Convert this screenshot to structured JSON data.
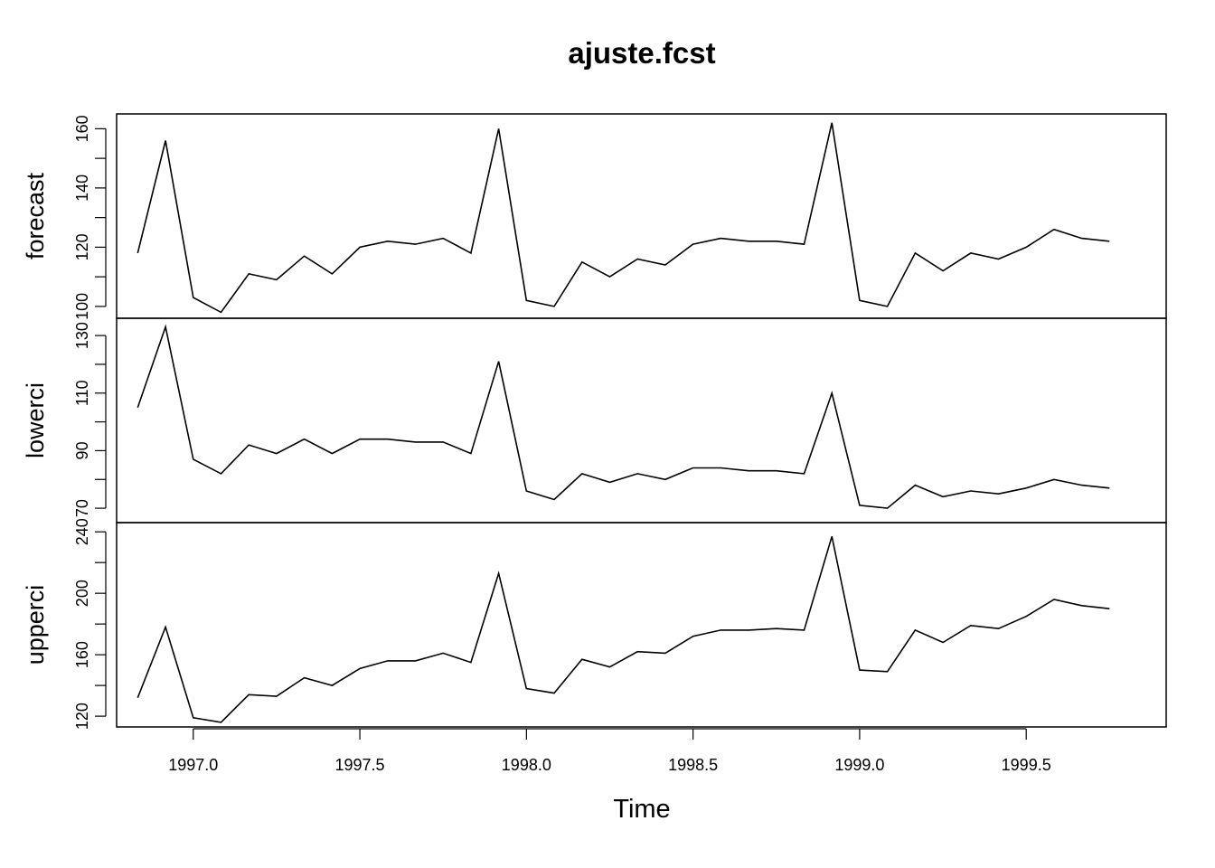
{
  "chart_data": {
    "type": "line",
    "title": "ajuste.fcst",
    "xlabel": "Time",
    "x_ticks": [
      1997.0,
      1997.5,
      1998.0,
      1998.5,
      1999.0,
      1999.5
    ],
    "x_tick_labels": [
      "1997.0",
      "1997.5",
      "1998.0",
      "1998.5",
      "1999.0",
      "1999.5"
    ],
    "xlim": [
      1996.77,
      1999.92
    ],
    "x": [
      1996.8333,
      1996.9167,
      1997.0,
      1997.0833,
      1997.1667,
      1997.25,
      1997.3333,
      1997.4167,
      1997.5,
      1997.5833,
      1997.6667,
      1997.75,
      1997.8333,
      1997.9167,
      1998.0,
      1998.0833,
      1998.1667,
      1998.25,
      1998.3333,
      1998.4167,
      1998.5,
      1998.5833,
      1998.6667,
      1998.75,
      1998.8333,
      1998.9167,
      1999.0,
      1999.0833,
      1999.1667,
      1999.25,
      1999.3333,
      1999.4167,
      1999.5,
      1999.5833,
      1999.6667,
      1999.75
    ],
    "grid": false,
    "legend": "none",
    "line_color": "#000000",
    "series": [
      {
        "name": "forecast",
        "ylim": [
          96,
          165
        ],
        "yticks": [
          100,
          120,
          140,
          160
        ],
        "ytick_labels": [
          "100",
          "120",
          "140",
          "160"
        ],
        "values": [
          118,
          156,
          103,
          98,
          111,
          109,
          117,
          111,
          120,
          122,
          121,
          123,
          118,
          160,
          102,
          100,
          115,
          110,
          116,
          114,
          121,
          123,
          122,
          122,
          121,
          162,
          102,
          100,
          118,
          112,
          118,
          116,
          120,
          126,
          123,
          122
        ]
      },
      {
        "name": "lowerci",
        "ylim": [
          65,
          136
        ],
        "yticks": [
          70,
          90,
          110,
          130
        ],
        "ytick_labels": [
          "70",
          "90",
          "110",
          "130"
        ],
        "values": [
          105,
          133,
          87,
          82,
          92,
          89,
          94,
          89,
          94,
          94,
          93,
          93,
          89,
          121,
          76,
          73,
          82,
          79,
          82,
          80,
          84,
          84,
          83,
          83,
          82,
          110,
          71,
          70,
          78,
          74,
          76,
          75,
          77,
          80,
          78,
          77
        ]
      },
      {
        "name": "upperci",
        "ylim": [
          113,
          246
        ],
        "yticks": [
          120,
          160,
          200,
          240
        ],
        "ytick_labels": [
          "120",
          "160",
          "200",
          "240"
        ],
        "values": [
          132,
          178,
          119,
          116,
          134,
          133,
          145,
          140,
          151,
          156,
          156,
          161,
          155,
          213,
          138,
          135,
          157,
          152,
          162,
          161,
          172,
          176,
          176,
          177,
          176,
          237,
          150,
          149,
          176,
          168,
          179,
          177,
          185,
          196,
          192,
          190
        ]
      }
    ]
  }
}
